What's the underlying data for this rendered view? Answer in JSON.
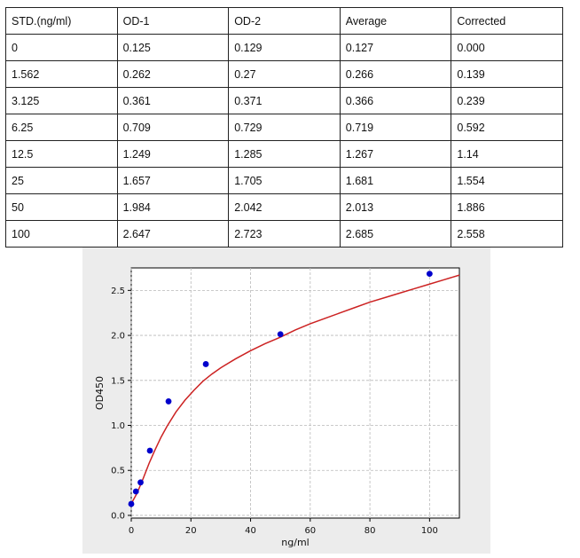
{
  "table": {
    "headers": [
      "STD.(ng/ml)",
      "OD-1",
      "OD-2",
      "Average",
      "Corrected"
    ],
    "rows": [
      [
        "0",
        "0.125",
        "0.129",
        "0.127",
        "0.000"
      ],
      [
        "1.562",
        "0.262",
        "0.27",
        "0.266",
        "0.139"
      ],
      [
        "3.125",
        "0.361",
        "0.371",
        "0.366",
        "0.239"
      ],
      [
        "6.25",
        "0.709",
        "0.729",
        "0.719",
        "0.592"
      ],
      [
        "12.5",
        "1.249",
        "1.285",
        "1.267",
        "1.14"
      ],
      [
        "25",
        "1.657",
        "1.705",
        "1.681",
        "1.554"
      ],
      [
        "50",
        "1.984",
        "2.042",
        "2.013",
        "1.886"
      ],
      [
        "100",
        "2.647",
        "2.723",
        "2.685",
        "2.558"
      ]
    ]
  },
  "chart_data": {
    "type": "scatter",
    "xlabel": "ng/ml",
    "ylabel": "OD450",
    "xlim": [
      0,
      110
    ],
    "ylim": [
      -0.03,
      2.75
    ],
    "xticks": [
      0,
      20,
      40,
      60,
      80,
      100
    ],
    "yticks": [
      0.0,
      0.5,
      1.0,
      1.5,
      2.0,
      2.5
    ],
    "grid": true,
    "series": [
      {
        "kind": "points",
        "color": "#0000cc",
        "x": [
          0,
          1.562,
          3.125,
          6.25,
          12.5,
          25,
          50,
          100
        ],
        "y": [
          0.127,
          0.266,
          0.366,
          0.719,
          1.267,
          1.681,
          2.013,
          2.685
        ]
      },
      {
        "kind": "fit-curve",
        "color": "#cc2222",
        "x": [
          0,
          2,
          4,
          6,
          8,
          10,
          12,
          15,
          18,
          21,
          24,
          27,
          30,
          35,
          40,
          45,
          50,
          55,
          60,
          65,
          70,
          75,
          80,
          85,
          90,
          95,
          100,
          105,
          110
        ],
        "y": [
          0.13,
          0.25,
          0.41,
          0.58,
          0.73,
          0.87,
          0.99,
          1.15,
          1.28,
          1.39,
          1.49,
          1.57,
          1.64,
          1.74,
          1.83,
          1.91,
          1.98,
          2.06,
          2.13,
          2.19,
          2.25,
          2.31,
          2.37,
          2.42,
          2.47,
          2.52,
          2.57,
          2.62,
          2.67
        ]
      }
    ]
  }
}
